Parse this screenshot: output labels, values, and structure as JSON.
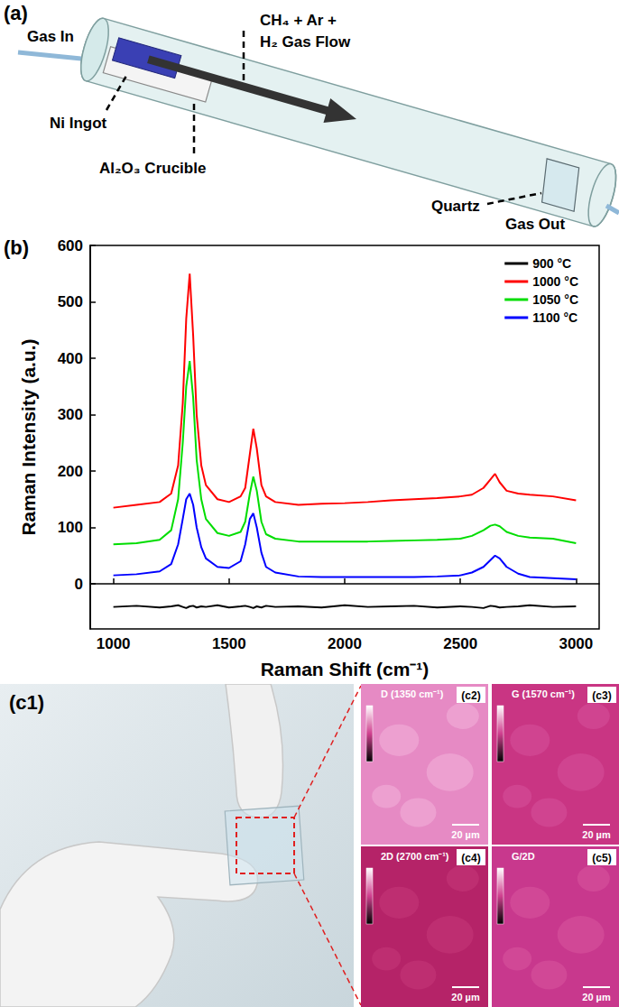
{
  "panels": {
    "a": {
      "label": "(a)",
      "gas_in": "Gas In",
      "gas_flow": [
        "CH₄ + Ar +",
        "H₂ Gas Flow"
      ],
      "ni_ingot": "Ni Ingot",
      "crucible": "Al₂O₃ Crucible",
      "quartz": "Quartz",
      "gas_out": "Gas Out"
    },
    "b": {
      "label": "(b)"
    },
    "c": {
      "photo_label": "(c1)",
      "maps": [
        {
          "label": "(c2)",
          "title": "D (1350 cm⁻¹)",
          "scale_bar": "20 µm"
        },
        {
          "label": "(c3)",
          "title": "G (1570 cm⁻¹)",
          "scale_bar": "20 µm"
        },
        {
          "label": "(c4)",
          "title": "2D (2700 cm⁻¹)",
          "scale_bar": "20 µm"
        },
        {
          "label": "(c5)",
          "title": "G/2D",
          "scale_bar": "20 µm"
        }
      ]
    }
  },
  "chart_data": {
    "type": "line",
    "x_label": "Raman Shift (cm⁻¹)",
    "y_label": "Raman Intensity (a.u.)",
    "x": [
      1000,
      1100,
      1200,
      1250,
      1280,
      1300,
      1315,
      1330,
      1345,
      1360,
      1380,
      1400,
      1450,
      1500,
      1550,
      1570,
      1590,
      1605,
      1620,
      1640,
      1660,
      1700,
      1800,
      1900,
      2000,
      2100,
      2200,
      2300,
      2400,
      2500,
      2550,
      2600,
      2630,
      2650,
      2670,
      2700,
      2750,
      2800,
      2900,
      3000
    ],
    "series": [
      {
        "name": "900 °C",
        "color": "#000000",
        "values": [
          -41,
          -39,
          -42,
          -40,
          -38,
          -41,
          -43,
          -40,
          -39,
          -42,
          -40,
          -41,
          -38,
          -42,
          -40,
          -39,
          -41,
          -43,
          -40,
          -42,
          -39,
          -41,
          -40,
          -42,
          -38,
          -41,
          -40,
          -39,
          -42,
          -40,
          -41,
          -43,
          -39,
          -40,
          -42,
          -41,
          -40,
          -38,
          -41,
          -40
        ]
      },
      {
        "name": "1000 °C",
        "color": "#ff0000",
        "values": [
          135,
          140,
          145,
          160,
          210,
          320,
          470,
          550,
          440,
          300,
          210,
          175,
          150,
          145,
          155,
          170,
          230,
          275,
          240,
          175,
          155,
          145,
          140,
          142,
          143,
          145,
          148,
          150,
          152,
          155,
          158,
          170,
          185,
          195,
          180,
          165,
          160,
          158,
          155,
          148
        ]
      },
      {
        "name": "1050 °C",
        "color": "#00dd00",
        "values": [
          70,
          72,
          78,
          95,
          150,
          250,
          350,
          395,
          330,
          220,
          150,
          115,
          90,
          85,
          92,
          110,
          160,
          190,
          165,
          110,
          88,
          80,
          75,
          75,
          75,
          75,
          76,
          77,
          78,
          80,
          85,
          95,
          103,
          105,
          102,
          92,
          85,
          82,
          80,
          72
        ]
      },
      {
        "name": "1100 °C",
        "color": "#0000ff",
        "values": [
          15,
          17,
          22,
          35,
          70,
          115,
          150,
          160,
          140,
          100,
          65,
          45,
          30,
          28,
          40,
          70,
          115,
          125,
          100,
          55,
          30,
          20,
          13,
          12,
          12,
          12,
          12,
          12,
          13,
          15,
          20,
          30,
          42,
          50,
          45,
          30,
          18,
          12,
          10,
          8
        ]
      }
    ],
    "xlim": [
      900,
      3100
    ],
    "xticks": [
      1000,
      1500,
      2000,
      2500,
      3000
    ],
    "ylim": [
      -80,
      600
    ],
    "yticks": [
      0,
      100,
      200,
      300,
      400,
      500,
      600
    ],
    "legend": "upper right",
    "grid": false
  }
}
